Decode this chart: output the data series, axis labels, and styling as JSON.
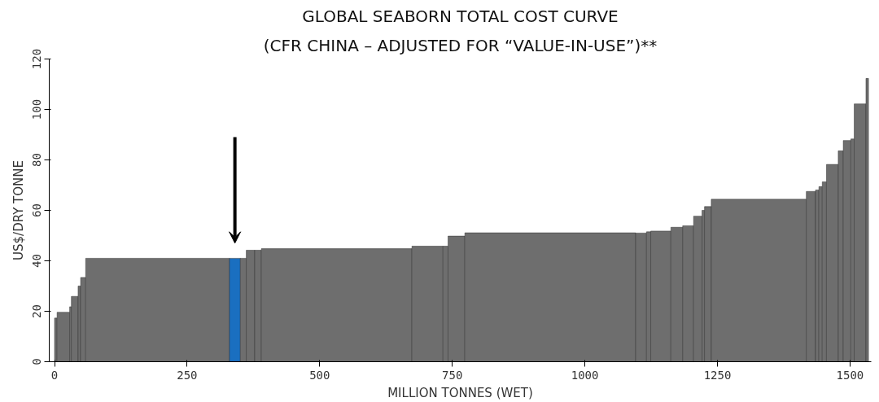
{
  "chart_data": {
    "type": "histogram",
    "title": "GLOBAL SEABORN TOTAL COST CURVE",
    "subtitle": "(CFR CHINA – ADJUSTED FOR “VALUE-IN-USE”)**",
    "xlabel": "MILLION TONNES (WET)",
    "ylabel": "US$/DRY TONNE",
    "bins": [
      0,
      4.8,
      28.5,
      31.7,
      44.4,
      49.2,
      58.7,
      329.8,
      350.4,
      361.5,
      377.4,
      390.0,
      673.9,
      732.5,
      742.0,
      773.7,
      1095.6,
      1116.2,
      1124.2,
      1162.2,
      1184.4,
      1205.0,
      1220.9,
      1225.6,
      1238.3,
      1417.5,
      1434.9,
      1441.3,
      1447.6,
      1455.5,
      1477.7,
      1487.2,
      1501.5,
      1507.8,
      1530.0,
      1534.8
    ],
    "values": [
      17.3,
      19.6,
      21.8,
      25.9,
      30,
      33.4,
      41,
      41,
      41,
      44.2,
      44.2,
      44.8,
      45.8,
      45.8,
      49.8,
      51.1,
      51,
      51.5,
      51.8,
      53.3,
      53.9,
      57.7,
      60,
      61.5,
      64.4,
      67.5,
      68.1,
      69.4,
      71.3,
      78.2,
      83.6,
      87.7,
      88.3,
      102.2,
      112.3
    ],
    "colors": [
      "#6e6e6e",
      "#6e6e6e",
      "#6e6e6e",
      "#6e6e6e",
      "#6e6e6e",
      "#6e6e6e",
      "#6e6e6e",
      "#1a6fc0",
      "#6e6e6e",
      "#6e6e6e",
      "#6e6e6e",
      "#6e6e6e",
      "#6e6e6e",
      "#6e6e6e",
      "#6e6e6e",
      "#6e6e6e",
      "#6e6e6e",
      "#6e6e6e",
      "#6e6e6e",
      "#6e6e6e",
      "#6e6e6e",
      "#6e6e6e",
      "#6e6e6e",
      "#6e6e6e",
      "#6e6e6e",
      "#6e6e6e",
      "#6e6e6e",
      "#6e6e6e",
      "#6e6e6e",
      "#6e6e6e",
      "#6e6e6e",
      "#6e6e6e",
      "#6e6e6e",
      "#6e6e6e",
      "#6e6e6e"
    ],
    "xlim": [
      -10,
      1540
    ],
    "ylim": [
      0,
      120
    ],
    "xticks": [
      0,
      250,
      500,
      750,
      1000,
      1250,
      1500
    ],
    "yticks": [
      0,
      20,
      40,
      60,
      80,
      100,
      120
    ],
    "grid": false
  }
}
